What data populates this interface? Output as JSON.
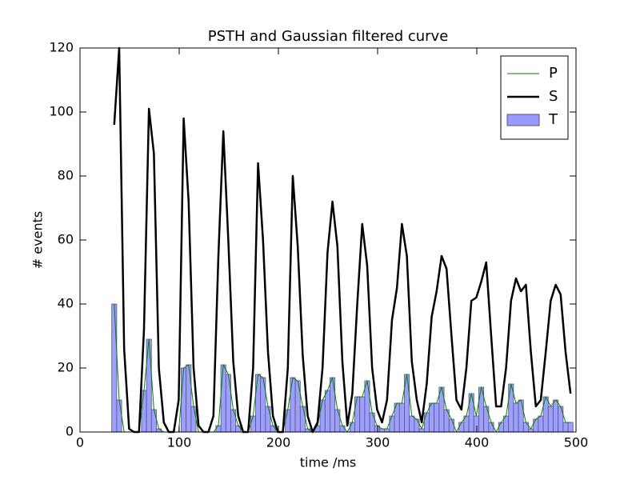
{
  "chart_data": {
    "type": "histogram",
    "title": "PSTH and Gaussian filtered curve",
    "xlabel": "time /ms",
    "ylabel": "# events",
    "xlim": [
      0,
      500
    ],
    "ylim": [
      0,
      120
    ],
    "xticks": [
      0,
      100,
      200,
      300,
      400,
      500
    ],
    "yticks": [
      0,
      20,
      40,
      60,
      80,
      100,
      120
    ],
    "legend": "upper right",
    "bins": [
      32,
      37,
      42,
      47,
      52,
      57,
      62,
      67,
      72,
      77,
      82,
      87,
      92,
      97,
      102,
      107,
      112,
      117,
      122,
      127,
      132,
      137,
      142,
      147,
      152,
      157,
      162,
      167,
      172,
      177,
      182,
      187,
      192,
      197,
      202,
      207,
      212,
      217,
      222,
      227,
      232,
      237,
      242,
      247,
      252,
      257,
      262,
      267,
      272,
      277,
      282,
      287,
      292,
      297,
      302,
      307,
      312,
      317,
      322,
      327,
      332,
      337,
      342,
      347,
      352,
      357,
      362,
      367,
      372,
      377,
      382,
      387,
      392,
      397,
      402,
      407,
      412,
      417,
      422,
      427,
      432,
      437,
      442,
      447,
      452,
      457,
      462,
      467,
      472,
      477,
      482,
      487,
      492,
      497
    ],
    "x": [
      34.5,
      39.5,
      44.5,
      49.5,
      54.5,
      59.5,
      64.5,
      69.5,
      74.5,
      79.5,
      84.5,
      89.5,
      94.5,
      99.5,
      104.5,
      109.5,
      114.5,
      119.5,
      124.5,
      129.5,
      134.5,
      139.5,
      144.5,
      149.5,
      154.5,
      159.5,
      164.5,
      169.5,
      174.5,
      179.5,
      184.5,
      189.5,
      194.5,
      199.5,
      204.5,
      209.5,
      214.5,
      219.5,
      224.5,
      229.5,
      234.5,
      239.5,
      244.5,
      249.5,
      254.5,
      259.5,
      264.5,
      269.5,
      274.5,
      279.5,
      284.5,
      289.5,
      294.5,
      299.5,
      304.5,
      309.5,
      314.5,
      319.5,
      324.5,
      329.5,
      334.5,
      339.5,
      344.5,
      349.5,
      354.5,
      359.5,
      364.5,
      369.5,
      374.5,
      379.5,
      384.5,
      389.5,
      394.5,
      399.5,
      404.5,
      409.5,
      414.5,
      419.5,
      424.5,
      429.5,
      434.5,
      439.5,
      444.5,
      449.5,
      454.5,
      459.5,
      464.5,
      469.5,
      474.5,
      479.5,
      484.5,
      489.5,
      494.5
    ],
    "series": [
      {
        "name": "P",
        "color": "#008000",
        "kind": "line",
        "width": 1,
        "values": [
          40,
          10,
          0,
          0,
          0,
          0,
          13,
          29,
          7,
          1,
          0,
          0,
          0,
          0,
          20,
          21,
          8,
          0,
          0,
          0,
          0,
          2,
          21,
          18,
          7,
          2,
          0,
          0,
          5,
          18,
          17,
          8,
          2,
          0,
          0,
          7,
          17,
          16,
          8,
          1,
          0,
          2,
          10,
          13,
          17,
          7,
          2,
          0,
          3,
          11,
          11,
          16,
          6,
          2,
          1,
          1,
          5,
          9,
          9,
          18,
          5,
          4,
          1,
          6,
          9,
          9,
          14,
          7,
          4,
          0,
          3,
          5,
          12,
          5,
          14,
          8,
          3,
          0,
          3,
          5,
          15,
          9,
          10,
          3,
          1,
          4,
          5,
          11,
          8,
          10,
          8,
          3,
          3
        ]
      },
      {
        "name": "S",
        "color": "#000000",
        "kind": "line",
        "width": 2.5,
        "values": [
          96,
          120,
          26,
          1,
          0,
          0,
          32,
          101,
          87,
          20,
          3,
          0,
          0,
          10,
          98,
          72,
          20,
          2,
          0,
          0,
          5,
          55,
          94,
          60,
          22,
          5,
          0,
          0,
          20,
          84,
          60,
          25,
          5,
          0,
          0,
          20,
          80,
          58,
          24,
          5,
          0,
          3,
          20,
          56,
          72,
          58,
          22,
          2,
          12,
          40,
          65,
          52,
          20,
          7,
          3,
          10,
          35,
          45,
          65,
          55,
          22,
          10,
          3,
          15,
          36,
          44,
          55,
          51,
          30,
          10,
          7,
          20,
          41,
          42,
          47,
          53,
          30,
          8,
          8,
          20,
          41,
          48,
          44,
          46,
          25,
          8,
          10,
          25,
          41,
          46,
          43,
          25,
          12
        ]
      },
      {
        "name": "T",
        "color": "#9999ff",
        "kind": "bar",
        "values": [
          40,
          10,
          0,
          0,
          0,
          0,
          13,
          29,
          7,
          1,
          0,
          0,
          0,
          0,
          20,
          21,
          8,
          0,
          0,
          0,
          0,
          2,
          21,
          18,
          7,
          2,
          0,
          0,
          5,
          18,
          17,
          8,
          2,
          0,
          0,
          7,
          17,
          16,
          8,
          1,
          0,
          2,
          10,
          13,
          17,
          7,
          2,
          0,
          3,
          11,
          11,
          16,
          6,
          2,
          1,
          1,
          5,
          9,
          9,
          18,
          5,
          4,
          1,
          6,
          9,
          9,
          14,
          7,
          4,
          0,
          3,
          5,
          12,
          5,
          14,
          8,
          3,
          0,
          3,
          5,
          15,
          9,
          10,
          3,
          1,
          4,
          5,
          11,
          8,
          10,
          8,
          3,
          3
        ]
      }
    ]
  }
}
